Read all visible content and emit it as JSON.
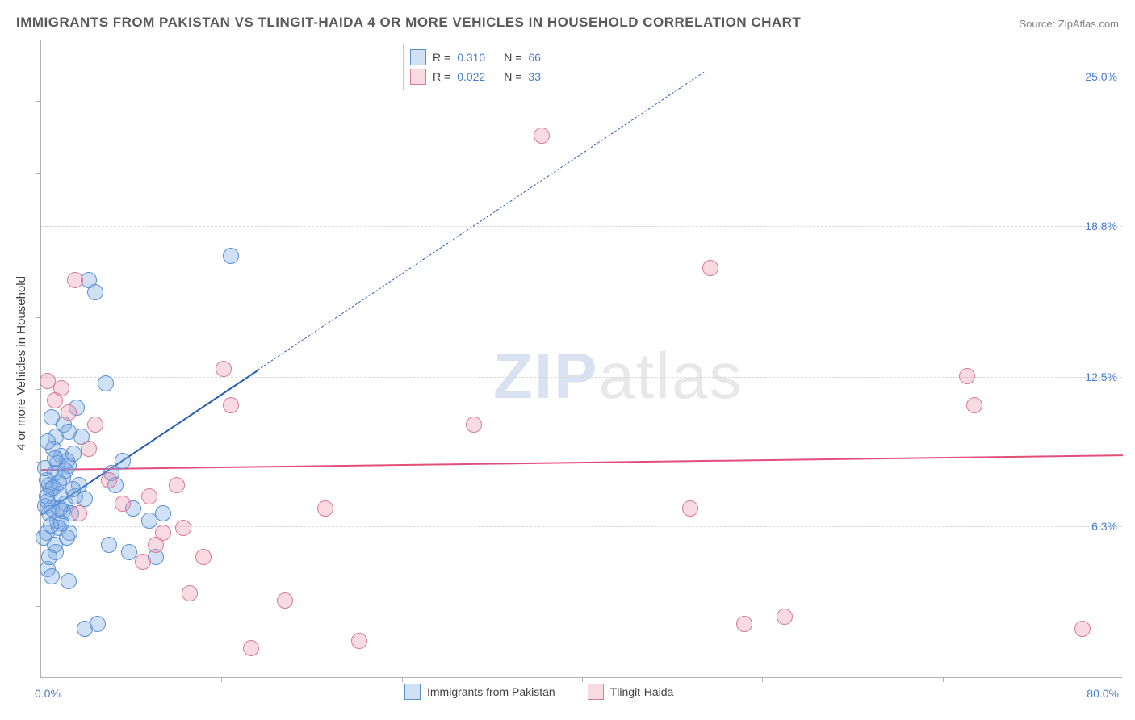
{
  "chart": {
    "type": "scatter",
    "title": "IMMIGRANTS FROM PAKISTAN VS TLINGIT-HAIDA 4 OR MORE VEHICLES IN HOUSEHOLD CORRELATION CHART",
    "source": "Source: ZipAtlas.com",
    "y_axis_title": "4 or more Vehicles in Household",
    "watermark_zip": "ZIP",
    "watermark_atlas": "atlas",
    "background_color": "#ffffff",
    "grid_color": "#d8d8d8",
    "axis_color": "#b0b0b0",
    "text_color": "#404040",
    "value_color": "#4a7bd4",
    "xlim": [
      0,
      80
    ],
    "ylim": [
      0,
      26.5
    ],
    "x_min_label": "0.0%",
    "x_max_label": "80.0%",
    "y_ticks": [
      {
        "value": 6.3,
        "label": "6.3%"
      },
      {
        "value": 12.5,
        "label": "12.5%"
      },
      {
        "value": 18.8,
        "label": "18.8%"
      },
      {
        "value": 25.0,
        "label": "25.0%"
      }
    ],
    "y_ticks_left": [
      3,
      6,
      9,
      12,
      15,
      18,
      21,
      24
    ],
    "x_ticks": [
      13.3,
      26.7,
      40,
      53.3,
      66.7
    ],
    "series": [
      {
        "name": "Immigrants from Pakistan",
        "fill": "rgba(123,170,227,0.35)",
        "stroke": "#5a8fd4",
        "trend_color": "#2a5bb8",
        "r": "0.310",
        "n": "66",
        "marker_radius": 10,
        "trend": {
          "x1": 0,
          "y1": 6.8,
          "x2": 16,
          "y2": 12.8,
          "dashed_extend_x": 49
        },
        "points": [
          [
            0.3,
            7.1
          ],
          [
            0.5,
            7.3
          ],
          [
            0.8,
            7.0
          ],
          [
            1.0,
            8.5
          ],
          [
            1.2,
            6.5
          ],
          [
            0.4,
            6.0
          ],
          [
            0.6,
            8.0
          ],
          [
            1.5,
            9.2
          ],
          [
            2.0,
            8.8
          ],
          [
            0.2,
            5.8
          ],
          [
            0.7,
            7.8
          ],
          [
            1.1,
            10.0
          ],
          [
            1.8,
            7.2
          ],
          [
            2.5,
            7.5
          ],
          [
            0.9,
            9.5
          ],
          [
            1.3,
            6.2
          ],
          [
            0.5,
            4.5
          ],
          [
            1.6,
            8.3
          ],
          [
            2.2,
            6.8
          ],
          [
            0.4,
            8.2
          ],
          [
            1.0,
            5.5
          ],
          [
            1.4,
            7.6
          ],
          [
            1.9,
            9.0
          ],
          [
            0.6,
            6.8
          ],
          [
            2.8,
            8.0
          ],
          [
            3.2,
            7.4
          ],
          [
            0.8,
            4.2
          ],
          [
            1.2,
            8.9
          ],
          [
            1.7,
            10.5
          ],
          [
            2.1,
            6.0
          ],
          [
            0.3,
            8.7
          ],
          [
            0.9,
            7.9
          ],
          [
            1.5,
            6.4
          ],
          [
            2.4,
            9.3
          ],
          [
            0.5,
            9.8
          ],
          [
            1.1,
            5.2
          ],
          [
            1.8,
            8.6
          ],
          [
            0.7,
            6.3
          ],
          [
            2.0,
            10.2
          ],
          [
            0.4,
            7.5
          ],
          [
            1.3,
            8.1
          ],
          [
            1.6,
            6.9
          ],
          [
            2.3,
            7.8
          ],
          [
            0.6,
            5.0
          ],
          [
            1.0,
            9.1
          ],
          [
            1.9,
            5.8
          ],
          [
            0.8,
            10.8
          ],
          [
            1.4,
            7.0
          ],
          [
            3.5,
            16.5
          ],
          [
            4.0,
            16.0
          ],
          [
            2.6,
            11.2
          ],
          [
            3.0,
            10.0
          ],
          [
            4.8,
            12.2
          ],
          [
            5.2,
            8.5
          ],
          [
            5.5,
            8.0
          ],
          [
            6.0,
            9.0
          ],
          [
            6.8,
            7.0
          ],
          [
            8.0,
            6.5
          ],
          [
            8.5,
            5.0
          ],
          [
            3.2,
            2.0
          ],
          [
            4.2,
            2.2
          ],
          [
            5.0,
            5.5
          ],
          [
            6.5,
            5.2
          ],
          [
            9.0,
            6.8
          ],
          [
            2.0,
            4.0
          ],
          [
            14.0,
            17.5
          ]
        ]
      },
      {
        "name": "Tlingit-Haida",
        "fill": "rgba(235,150,175,0.35)",
        "stroke": "#d87a9a",
        "trend_color": "#e34d7a",
        "r": "0.022",
        "n": "33",
        "marker_radius": 10,
        "trend": {
          "x1": 0,
          "y1": 8.7,
          "x2": 80,
          "y2": 9.3,
          "dashed_extend_x": 80
        },
        "points": [
          [
            2.5,
            16.5
          ],
          [
            1.5,
            12.0
          ],
          [
            2.0,
            11.0
          ],
          [
            0.5,
            12.3
          ],
          [
            8.0,
            7.5
          ],
          [
            9.0,
            6.0
          ],
          [
            10.5,
            6.2
          ],
          [
            11.0,
            3.5
          ],
          [
            12.0,
            5.0
          ],
          [
            13.5,
            12.8
          ],
          [
            14.0,
            11.3
          ],
          [
            10.0,
            8.0
          ],
          [
            15.5,
            1.2
          ],
          [
            18.0,
            3.2
          ],
          [
            21.0,
            7.0
          ],
          [
            23.5,
            1.5
          ],
          [
            32.0,
            10.5
          ],
          [
            37.0,
            22.5
          ],
          [
            48.0,
            7.0
          ],
          [
            49.5,
            17.0
          ],
          [
            52.0,
            2.2
          ],
          [
            55.0,
            2.5
          ],
          [
            68.5,
            12.5
          ],
          [
            69.0,
            11.3
          ],
          [
            77.0,
            2.0
          ],
          [
            1.0,
            11.5
          ],
          [
            3.5,
            9.5
          ],
          [
            5.0,
            8.2
          ],
          [
            7.5,
            4.8
          ],
          [
            6.0,
            7.2
          ],
          [
            4.0,
            10.5
          ],
          [
            8.5,
            5.5
          ],
          [
            2.8,
            6.8
          ]
        ]
      }
    ],
    "legend_r_label": "R =",
    "legend_n_label": "N =",
    "bottom_legend_label_1": "Immigrants from Pakistan",
    "bottom_legend_label_2": "Tlingit-Haida"
  }
}
